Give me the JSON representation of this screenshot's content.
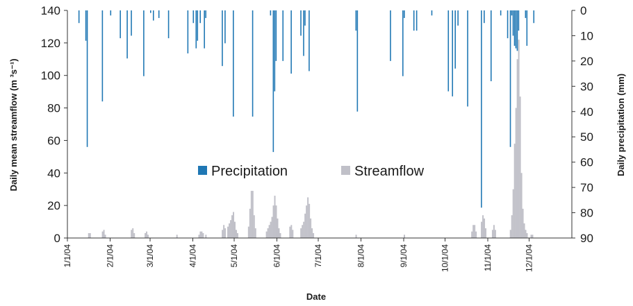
{
  "chart_data": {
    "type": "bar",
    "xlabel": "Date",
    "ylabel_left": "Daily mean streamflow (m ³s⁻¹)",
    "ylabel_right": "Daily precipitation (mm)",
    "y_left_lim": [
      0,
      140
    ],
    "y_left_ticks": [
      "0",
      "20",
      "40",
      "60",
      "80",
      "100",
      "120",
      "140"
    ],
    "y_right_lim": [
      0,
      90
    ],
    "y_right_inverted": true,
    "y_right_ticks": [
      "0",
      "10",
      "20",
      "30",
      "40",
      "50",
      "60",
      "70",
      "80",
      "90"
    ],
    "x_start": "2004-01-01",
    "x_end": "2004-12-31",
    "x_tick_labels": [
      "1/1/04",
      "2/1/04",
      "3/1/04",
      "4/1/04",
      "5/1/04",
      "6/1/04",
      "7/1/04",
      "8/1/04",
      "9/1/04",
      "10/1/04",
      "11/1/04",
      "12/1/04"
    ],
    "x_tick_dates": [
      "2004-01-01",
      "2004-02-01",
      "2004-03-01",
      "2004-04-01",
      "2004-05-01",
      "2004-06-01",
      "2004-07-01",
      "2004-08-01",
      "2004-09-01",
      "2004-10-01",
      "2004-11-01",
      "2004-12-01"
    ],
    "legend_position": "center",
    "grid": false,
    "series": [
      {
        "name": "Precipitation",
        "axis": "right",
        "color": "#1f77b4",
        "points": [
          [
            "2004-01-09",
            5
          ],
          [
            "2004-01-14",
            12
          ],
          [
            "2004-01-15",
            54
          ],
          [
            "2004-01-26",
            36
          ],
          [
            "2004-02-01",
            2
          ],
          [
            "2004-02-08",
            11
          ],
          [
            "2004-02-13",
            19
          ],
          [
            "2004-02-16",
            10
          ],
          [
            "2004-02-25",
            26
          ],
          [
            "2004-03-01",
            1
          ],
          [
            "2004-03-03",
            4
          ],
          [
            "2004-03-07",
            3
          ],
          [
            "2004-03-14",
            11
          ],
          [
            "2004-03-28",
            17
          ],
          [
            "2004-04-01",
            5
          ],
          [
            "2004-04-03",
            15
          ],
          [
            "2004-04-04",
            12
          ],
          [
            "2004-04-06",
            5
          ],
          [
            "2004-04-09",
            15
          ],
          [
            "2004-04-10",
            3
          ],
          [
            "2004-04-22",
            22
          ],
          [
            "2004-04-24",
            13
          ],
          [
            "2004-04-30",
            42
          ],
          [
            "2004-05-14",
            42
          ],
          [
            "2004-05-27",
            2
          ],
          [
            "2004-05-29",
            56
          ],
          [
            "2004-05-30",
            32
          ],
          [
            "2004-05-31",
            20
          ],
          [
            "2004-06-05",
            20
          ],
          [
            "2004-06-11",
            25
          ],
          [
            "2004-06-18",
            10
          ],
          [
            "2004-06-20",
            18
          ],
          [
            "2004-06-21",
            6
          ],
          [
            "2004-06-24",
            24
          ],
          [
            "2004-07-29",
            40
          ],
          [
            "2004-07-28",
            8
          ],
          [
            "2004-08-22",
            20
          ],
          [
            "2004-08-31",
            26
          ],
          [
            "2004-09-01",
            3
          ],
          [
            "2004-09-08",
            8
          ],
          [
            "2004-09-10",
            8
          ],
          [
            "2004-09-21",
            2
          ],
          [
            "2004-10-03",
            32
          ],
          [
            "2004-10-06",
            34
          ],
          [
            "2004-10-08",
            23
          ],
          [
            "2004-10-10",
            6
          ],
          [
            "2004-10-17",
            38
          ],
          [
            "2004-10-27",
            78
          ],
          [
            "2004-10-29",
            5
          ],
          [
            "2004-11-03",
            28
          ],
          [
            "2004-11-10",
            2
          ],
          [
            "2004-11-15",
            11
          ],
          [
            "2004-11-17",
            54
          ],
          [
            "2004-11-18",
            2
          ],
          [
            "2004-11-19",
            10
          ],
          [
            "2004-11-20",
            14
          ],
          [
            "2004-11-21",
            15
          ],
          [
            "2004-11-22",
            16
          ],
          [
            "2004-11-23",
            8
          ],
          [
            "2004-11-28",
            3
          ],
          [
            "2004-11-29",
            14
          ],
          [
            "2004-12-04",
            5
          ]
        ]
      },
      {
        "name": "Streamflow",
        "axis": "left",
        "color": "#c0c0c8",
        "points": [
          [
            "2004-01-16",
            3
          ],
          [
            "2004-01-17",
            3
          ],
          [
            "2004-01-26",
            4
          ],
          [
            "2004-01-27",
            5
          ],
          [
            "2004-01-28",
            2
          ],
          [
            "2004-02-16",
            5
          ],
          [
            "2004-02-17",
            6
          ],
          [
            "2004-02-18",
            3
          ],
          [
            "2004-02-26",
            3
          ],
          [
            "2004-02-27",
            4
          ],
          [
            "2004-02-28",
            2
          ],
          [
            "2004-03-20",
            2
          ],
          [
            "2004-04-05",
            2
          ],
          [
            "2004-04-06",
            4
          ],
          [
            "2004-04-07",
            4
          ],
          [
            "2004-04-08",
            3
          ],
          [
            "2004-04-10",
            2
          ],
          [
            "2004-04-22",
            5
          ],
          [
            "2004-04-23",
            8
          ],
          [
            "2004-04-24",
            6
          ],
          [
            "2004-04-26",
            7
          ],
          [
            "2004-04-27",
            9
          ],
          [
            "2004-04-28",
            11
          ],
          [
            "2004-04-29",
            14
          ],
          [
            "2004-04-30",
            16
          ],
          [
            "2004-05-01",
            10
          ],
          [
            "2004-05-02",
            5
          ],
          [
            "2004-05-03",
            3
          ],
          [
            "2004-05-11",
            7
          ],
          [
            "2004-05-12",
            18
          ],
          [
            "2004-05-13",
            29
          ],
          [
            "2004-05-14",
            29
          ],
          [
            "2004-05-15",
            14
          ],
          [
            "2004-05-16",
            6
          ],
          [
            "2004-05-24",
            4
          ],
          [
            "2004-05-25",
            6
          ],
          [
            "2004-05-26",
            8
          ],
          [
            "2004-05-27",
            10
          ],
          [
            "2004-05-28",
            13
          ],
          [
            "2004-05-29",
            20
          ],
          [
            "2004-05-30",
            26
          ],
          [
            "2004-05-31",
            20
          ],
          [
            "2004-06-01",
            12
          ],
          [
            "2004-06-02",
            6
          ],
          [
            "2004-06-03",
            3
          ],
          [
            "2004-06-10",
            7
          ],
          [
            "2004-06-11",
            8
          ],
          [
            "2004-06-12",
            5
          ],
          [
            "2004-06-18",
            6
          ],
          [
            "2004-06-19",
            8
          ],
          [
            "2004-06-20",
            10
          ],
          [
            "2004-06-21",
            15
          ],
          [
            "2004-06-22",
            20
          ],
          [
            "2004-06-23",
            25
          ],
          [
            "2004-06-24",
            21
          ],
          [
            "2004-06-25",
            12
          ],
          [
            "2004-06-26",
            6
          ],
          [
            "2004-06-27",
            3
          ],
          [
            "2004-07-28",
            2
          ],
          [
            "2004-09-01",
            2
          ],
          [
            "2004-10-20",
            4
          ],
          [
            "2004-10-21",
            8
          ],
          [
            "2004-10-22",
            8
          ],
          [
            "2004-10-23",
            4
          ],
          [
            "2004-10-27",
            10
          ],
          [
            "2004-10-28",
            14
          ],
          [
            "2004-10-29",
            12
          ],
          [
            "2004-10-30",
            6
          ],
          [
            "2004-11-04",
            5
          ],
          [
            "2004-11-05",
            8
          ],
          [
            "2004-11-06",
            5
          ],
          [
            "2004-11-17",
            5
          ],
          [
            "2004-11-18",
            14
          ],
          [
            "2004-11-19",
            30
          ],
          [
            "2004-11-20",
            58
          ],
          [
            "2004-11-21",
            80
          ],
          [
            "2004-11-22",
            110
          ],
          [
            "2004-11-23",
            122
          ],
          [
            "2004-11-24",
            87
          ],
          [
            "2004-11-25",
            40
          ],
          [
            "2004-11-26",
            18
          ],
          [
            "2004-11-27",
            9
          ],
          [
            "2004-11-28",
            5
          ],
          [
            "2004-11-29",
            3
          ],
          [
            "2004-12-02",
            2
          ],
          [
            "2004-12-03",
            2
          ]
        ]
      }
    ]
  }
}
